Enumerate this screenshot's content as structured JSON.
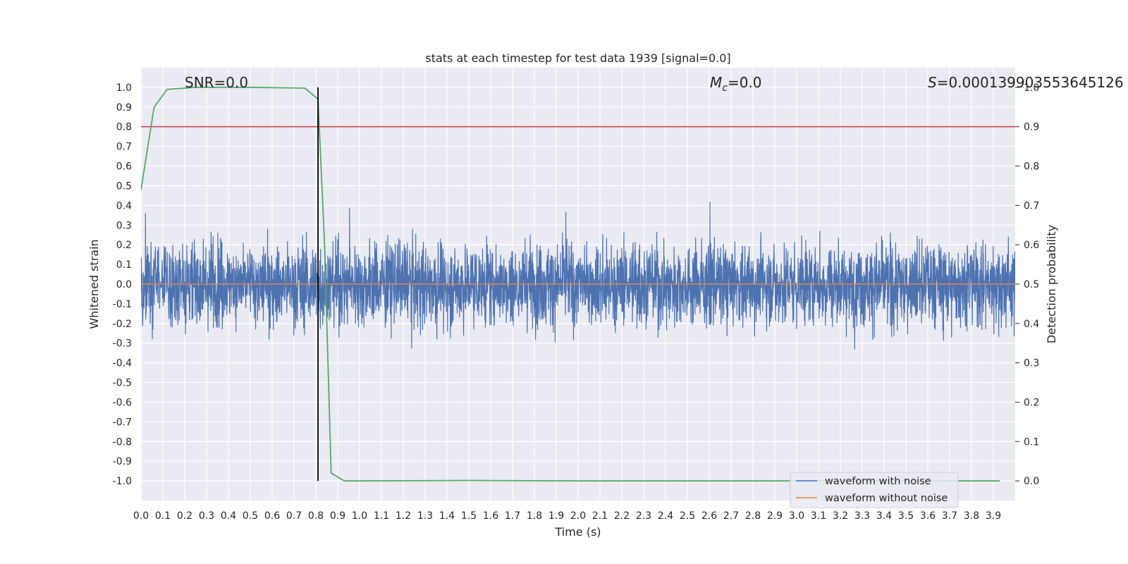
{
  "chart_data": {
    "type": "line",
    "title": "stats at each timestep for test data 1939 [signal=0.0]",
    "xlabel": "Time (s)",
    "ylabel": "Whitened strain",
    "y2label": "Detection probability",
    "xlim": [
      0.0,
      4.0
    ],
    "ylim": [
      -1.1,
      1.1
    ],
    "y2lim": [
      -0.05,
      1.0
    ],
    "x_ticks": [
      "0.0",
      "0.1",
      "0.2",
      "0.3",
      "0.4",
      "0.5",
      "0.6",
      "0.7",
      "0.8",
      "0.9",
      "1.0",
      "1.1",
      "1.2",
      "1.3",
      "1.4",
      "1.5",
      "1.6",
      "1.7",
      "1.8",
      "1.9",
      "2.0",
      "2.1",
      "2.2",
      "2.3",
      "2.4",
      "2.5",
      "2.6",
      "2.7",
      "2.8",
      "2.9",
      "3.0",
      "3.1",
      "3.2",
      "3.3",
      "3.4",
      "3.5",
      "3.6",
      "3.7",
      "3.8",
      "3.9"
    ],
    "y_ticks": [
      "1.0",
      "0.9",
      "0.8",
      "0.7",
      "0.6",
      "0.5",
      "0.4",
      "0.3",
      "0.2",
      "0.1",
      "0.0",
      "-0.1",
      "-0.2",
      "-0.3",
      "-0.4",
      "-0.5",
      "-0.6",
      "-0.7",
      "-0.8",
      "-0.9",
      "-1.0"
    ],
    "y2_ticks": [
      "1.0",
      "0.9",
      "0.8",
      "0.7",
      "0.6",
      "0.5",
      "0.4",
      "0.3",
      "0.2",
      "0.1",
      "0.0"
    ],
    "annotations": {
      "snr": "SNR=0.0",
      "mc_symbol": "M",
      "mc_sub": "c",
      "mc_value": "=0.0",
      "s_symbol": "S",
      "s_value": "=0.00013990355364512​6"
    },
    "series": [
      {
        "name": "waveform with noise",
        "axis": "left",
        "color": "#4c72b0",
        "noise_envelope": 0.35
      },
      {
        "name": "waveform without noise",
        "axis": "left",
        "color": "#dd8452",
        "y_constant": 0.0
      },
      {
        "axis": "right",
        "color": "#55a868",
        "x": [
          0.0,
          0.06,
          0.12,
          0.25,
          0.5,
          0.75,
          0.81,
          0.84,
          0.87,
          0.93,
          1.0,
          1.5,
          2.0,
          2.5,
          3.0,
          3.5,
          3.93
        ],
        "y": [
          0.74,
          0.95,
          0.995,
          1.0,
          1.0,
          0.998,
          0.97,
          0.6,
          0.02,
          0.0,
          0.0,
          0.001,
          0.0,
          0.0,
          0.0,
          0.0,
          0.0
        ]
      }
    ],
    "threshold_line": {
      "axis": "right",
      "y": 0.9,
      "color": "#c44e52"
    },
    "vertical_marker": {
      "x": 0.81,
      "color": "#000000"
    },
    "legend": {
      "placement": "lower-right",
      "entries": [
        "waveform with noise",
        "waveform without noise"
      ]
    },
    "grid": true,
    "background": "#eaeaf2"
  }
}
